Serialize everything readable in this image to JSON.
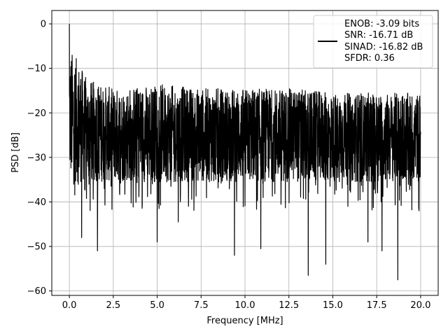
{
  "chart_data": {
    "type": "line",
    "xlabel": "Frequency [MHz]",
    "ylabel": "PSD [dB]",
    "xlim": [
      -1.0,
      21.0
    ],
    "ylim": [
      -61.0,
      3.0
    ],
    "xticks": [
      0.0,
      2.5,
      5.0,
      7.5,
      10.0,
      12.5,
      15.0,
      17.5,
      20.0
    ],
    "xtick_labels": [
      "0.0",
      "2.5",
      "5.0",
      "7.5",
      "10.0",
      "12.5",
      "15.0",
      "17.5",
      "20.0"
    ],
    "yticks": [
      0,
      -10,
      -20,
      -30,
      -40,
      -50,
      -60
    ],
    "ytick_labels": [
      "0",
      "−10",
      "−20",
      "−30",
      "−40",
      "−50",
      "−60"
    ],
    "grid": true,
    "legend_position": "top-right",
    "series": [
      {
        "name": "ENOB: -3.09 bits\nSNR: -16.71 dB\nSINAD: -16.82 dB\nSFDR: 0.36",
        "legend_lines": [
          "ENOB: -3.09 bits",
          "SNR: -16.71 dB",
          "SINAD: -16.82 dB",
          "SFDR: 0.36"
        ],
        "color": "#000000",
        "x_range": [
          0.0,
          20.0
        ],
        "peak": {
          "x": 0.0,
          "y": 0.0
        },
        "typical_range": [
          -34,
          -13
        ],
        "envelope_upper": [
          [
            0.0,
            -5
          ],
          [
            0.5,
            -8
          ],
          [
            1.0,
            -12
          ],
          [
            2.5,
            -14
          ],
          [
            5.0,
            -13
          ],
          [
            7.5,
            -14
          ],
          [
            10.0,
            -14
          ],
          [
            12.5,
            -14
          ],
          [
            15.0,
            -15
          ],
          [
            17.5,
            -15
          ],
          [
            20.0,
            -15
          ]
        ],
        "notable_dips": [
          {
            "x": 0.7,
            "y": -48
          },
          {
            "x": 1.6,
            "y": -51
          },
          {
            "x": 5.0,
            "y": -49
          },
          {
            "x": 6.2,
            "y": -44.5
          },
          {
            "x": 9.4,
            "y": -52
          },
          {
            "x": 10.9,
            "y": -50.5
          },
          {
            "x": 13.6,
            "y": -56.5
          },
          {
            "x": 14.6,
            "y": -54
          },
          {
            "x": 17.0,
            "y": -49
          },
          {
            "x": 17.8,
            "y": -51
          },
          {
            "x": 18.7,
            "y": -57.5
          }
        ]
      }
    ]
  }
}
